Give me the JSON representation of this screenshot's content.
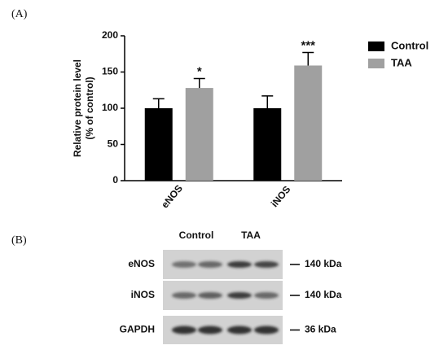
{
  "chart_data": {
    "type": "bar",
    "panel_label": "(A)",
    "ylabel": [
      "Relative protein level",
      "(% of control)"
    ],
    "categories": [
      "eNOS",
      "iNOS"
    ],
    "series": [
      {
        "name": "Control",
        "color": "#000000",
        "values": [
          100,
          100
        ],
        "errors": [
          13,
          17
        ]
      },
      {
        "name": "TAA",
        "color": "#a0a0a0",
        "values": [
          128,
          159
        ],
        "errors": [
          13,
          18
        ],
        "significance": [
          "*",
          "***"
        ]
      }
    ],
    "ylim": [
      0,
      200
    ],
    "yticks": [
      0,
      50,
      100,
      150,
      200
    ],
    "legend": "right"
  },
  "blot": {
    "panel_label": "(B)",
    "groups": [
      "Control",
      "TAA"
    ],
    "rows": [
      {
        "name": "eNOS",
        "size": "140 kDa"
      },
      {
        "name": "iNOS",
        "size": "140 kDa"
      },
      {
        "name": "GAPDH",
        "size": "36 kDa"
      }
    ]
  }
}
